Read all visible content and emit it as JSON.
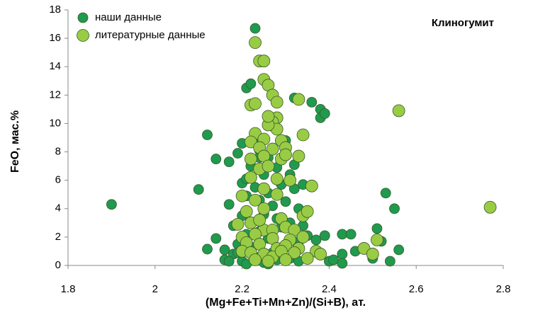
{
  "chart_data": {
    "type": "scatter",
    "title": "Клиногумит",
    "xlabel": "(Mg+Fe+Ti+Mn+Zn)/(Si+B), ат.",
    "ylabel": "FeO, мас.%",
    "xlim": [
      1.8,
      2.8
    ],
    "xticks": [
      1.8,
      2,
      2.2,
      2.4,
      2.6,
      2.8
    ],
    "ylim": [
      0,
      18
    ],
    "yticks": [
      0,
      2,
      4,
      6,
      8,
      10,
      12,
      14,
      16,
      18
    ],
    "legend": "upper left",
    "series": [
      {
        "name": "наши данные",
        "color": "#1f9a4e",
        "x": [
          1.9,
          2.1,
          2.12,
          2.12,
          2.14,
          2.14,
          2.16,
          2.16,
          2.17,
          2.17,
          2.18,
          2.18,
          2.19,
          2.19,
          2.2,
          2.2,
          2.2,
          2.2,
          2.21,
          2.21,
          2.21,
          2.21,
          2.22,
          2.22,
          2.22,
          2.22,
          2.23,
          2.23,
          2.23,
          2.23,
          2.24,
          2.24,
          2.24,
          2.25,
          2.25,
          2.25,
          2.26,
          2.26,
          2.26,
          2.27,
          2.27,
          2.27,
          2.28,
          2.28,
          2.29,
          2.29,
          2.29,
          2.3,
          2.3,
          2.31,
          2.31,
          2.31,
          2.32,
          2.32,
          2.32,
          2.33,
          2.33,
          2.34,
          2.34,
          2.35,
          2.35,
          2.36,
          2.37,
          2.38,
          2.38,
          2.39,
          2.39,
          2.4,
          2.41,
          2.43,
          2.43,
          2.43,
          2.45,
          2.46,
          2.5,
          2.51,
          2.52,
          2.53,
          2.54,
          2.55,
          2.56,
          2.17,
          2.19,
          2.24,
          2.28,
          2.33,
          2.26,
          2.21
        ],
        "values": [
          4.3,
          5.35,
          9.2,
          1.15,
          7.5,
          1.9,
          1.1,
          0.4,
          4.3,
          7.3,
          2.8,
          0.8,
          7.9,
          1.5,
          8.6,
          5.8,
          3.5,
          0.3,
          12.5,
          6.1,
          4.9,
          2.2,
          12.8,
          7.0,
          3.0,
          1.3,
          16.7,
          9.0,
          5.5,
          0.6,
          8.1,
          4.6,
          2.4,
          6.4,
          3.6,
          0.2,
          7.6,
          5.1,
          1.9,
          9.8,
          4.2,
          0.9,
          6.9,
          3.3,
          5.7,
          2.7,
          1.2,
          8.8,
          4.5,
          6.4,
          3.0,
          0.5,
          11.8,
          7.1,
          5.4,
          4.0,
          1.7,
          5.7,
          2.8,
          2.1,
          0.5,
          11.5,
          1.8,
          11.0,
          10.4,
          10.7,
          2.1,
          0.3,
          0.4,
          2.2,
          0.8,
          0.15,
          2.2,
          1.0,
          0.5,
          2.6,
          1.7,
          5.1,
          0.3,
          4.0,
          1.1,
          0.3,
          0.9,
          7.6,
          0.4,
          0.3,
          0.1,
          0.1
        ]
      },
      {
        "name": "литературные данные",
        "color": "#99cc44",
        "x": [
          2.23,
          2.24,
          2.25,
          2.25,
          2.26,
          2.27,
          2.28,
          2.22,
          2.23,
          2.33,
          2.28,
          2.27,
          2.28,
          2.26,
          2.23,
          2.22,
          2.25,
          2.29,
          2.34,
          2.24,
          2.27,
          2.3,
          2.22,
          2.25,
          2.29,
          2.33,
          2.3,
          2.24,
          2.26,
          2.28,
          2.22,
          2.25,
          2.2,
          2.23,
          2.28,
          2.36,
          2.25,
          2.21,
          2.29,
          2.34,
          2.35,
          2.19,
          2.22,
          2.25,
          2.27,
          2.3,
          2.32,
          2.2,
          2.23,
          2.27,
          2.31,
          2.34,
          2.21,
          2.24,
          2.28,
          2.3,
          2.33,
          2.2,
          2.22,
          2.25,
          2.27,
          2.29,
          2.32,
          2.37,
          2.38,
          2.26,
          2.3,
          2.48,
          2.5,
          2.51,
          2.56,
          2.77,
          2.23,
          2.35,
          2.24,
          2.31,
          2.26
        ],
        "values": [
          15.7,
          14.4,
          14.4,
          13.1,
          12.7,
          12.0,
          11.5,
          11.3,
          11.4,
          11.7,
          10.4,
          10.1,
          9.6,
          9.9,
          9.3,
          8.7,
          8.9,
          8.8,
          9.2,
          8.3,
          8.2,
          8.3,
          7.5,
          7.7,
          7.5,
          7.7,
          7.8,
          6.8,
          7.0,
          6.1,
          6.2,
          5.4,
          4.9,
          4.6,
          5.0,
          5.6,
          4.0,
          3.8,
          3.3,
          3.5,
          3.8,
          2.9,
          3.0,
          2.5,
          2.5,
          2.7,
          2.5,
          2.0,
          2.2,
          1.9,
          1.8,
          2.0,
          1.6,
          1.5,
          1.2,
          1.4,
          1.2,
          1.0,
          0.9,
          0.8,
          0.6,
          1.0,
          0.9,
          1.0,
          0.8,
          0.3,
          0.4,
          1.2,
          0.8,
          1.8,
          10.9,
          4.1,
          0.4,
          0.5,
          3.2,
          6.0,
          10.5
        ]
      }
    ]
  }
}
